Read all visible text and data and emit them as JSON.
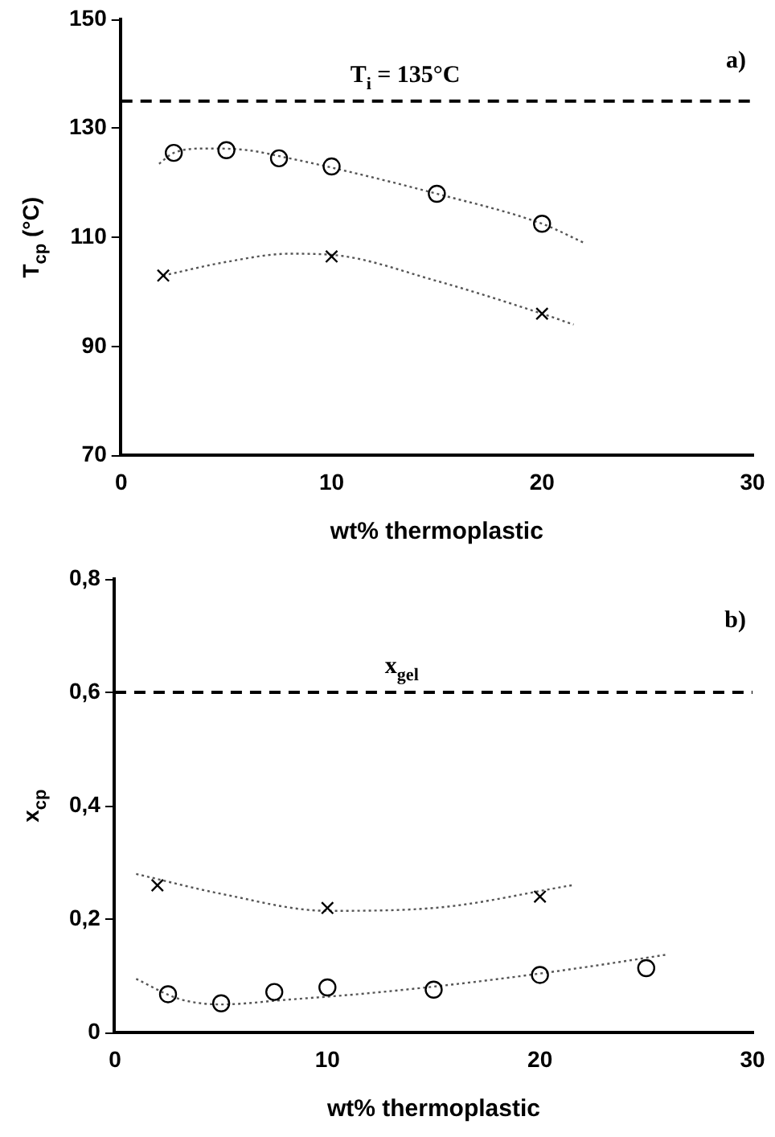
{
  "chart_data": [
    {
      "type": "scatter",
      "xlabel": "wt% thermoplastic",
      "ylabel": "T$_{cp}$ (°C)",
      "annotations": [
        "a)"
      ],
      "xlim": [
        0,
        30
      ],
      "xticks": [
        0,
        10,
        20,
        30
      ],
      "ylim": [
        70,
        150
      ],
      "yticks": [
        70,
        90,
        110,
        130,
        150
      ],
      "grid": false,
      "legend": false,
      "ref_lines": [
        {
          "axis": "y",
          "value": 135,
          "label": "T$_{i}$ = 135°C",
          "color": "#000000",
          "line_style": "dashed"
        }
      ],
      "series": [
        {
          "type": "scatter",
          "marker": "circle",
          "color": "#000000",
          "x": [
            2.5,
            5,
            7.5,
            10,
            15,
            20
          ],
          "values": [
            125.5,
            126,
            124.5,
            123,
            118,
            112.5
          ]
        },
        {
          "type": "scatter",
          "marker": "cross",
          "color": "#000000",
          "x": [
            2,
            10,
            20
          ],
          "values": [
            103,
            106.5,
            96
          ]
        },
        {
          "type": "line",
          "marker": "none",
          "line_style": "dotted",
          "color": "#555555",
          "x": [
            1.8,
            2.5,
            4,
            6,
            8,
            10,
            15,
            20,
            22
          ],
          "values": [
            123.5,
            125.5,
            126.3,
            126,
            124.5,
            122.8,
            118,
            112.5,
            109
          ]
        },
        {
          "type": "line",
          "marker": "none",
          "line_style": "dotted",
          "color": "#555555",
          "x": [
            2,
            5,
            8,
            10,
            15,
            20,
            21.5
          ],
          "values": [
            103,
            105.5,
            107,
            106.8,
            102,
            96,
            94
          ]
        }
      ]
    },
    {
      "type": "scatter",
      "xlabel": "wt% thermoplastic",
      "ylabel": "x$_{cp}$",
      "annotations": [
        "b)"
      ],
      "xlim": [
        0,
        30
      ],
      "xticks": [
        0,
        10,
        20,
        30
      ],
      "ylim": [
        0,
        0.8
      ],
      "yticks": [
        0,
        {
          "value": 0.2,
          "label": "0,2"
        },
        {
          "value": 0.4,
          "label": "0,4"
        },
        {
          "value": 0.6,
          "label": "0,6"
        },
        {
          "value": 0.8,
          "label": "0,8"
        }
      ],
      "grid": false,
      "legend": false,
      "ref_lines": [
        {
          "axis": "y",
          "value": 0.6,
          "label": "x$_{gel}$",
          "color": "#000000",
          "line_style": "dashed"
        }
      ],
      "series": [
        {
          "type": "scatter",
          "marker": "circle",
          "color": "#000000",
          "x": [
            2.5,
            5,
            7.5,
            10,
            15,
            20,
            25
          ],
          "values": [
            0.068,
            0.052,
            0.072,
            0.08,
            0.076,
            0.102,
            0.114
          ]
        },
        {
          "type": "scatter",
          "marker": "cross",
          "color": "#000000",
          "x": [
            2,
            10,
            20
          ],
          "values": [
            0.26,
            0.22,
            0.24
          ]
        },
        {
          "type": "line",
          "marker": "none",
          "line_style": "dotted",
          "color": "#555555",
          "x": [
            1,
            3,
            5,
            8,
            12,
            17,
            22,
            26
          ],
          "values": [
            0.095,
            0.06,
            0.05,
            0.058,
            0.07,
            0.09,
            0.115,
            0.138
          ]
        },
        {
          "type": "line",
          "marker": "none",
          "line_style": "dotted",
          "color": "#555555",
          "x": [
            1,
            5,
            10,
            15,
            21.5
          ],
          "values": [
            0.28,
            0.245,
            0.215,
            0.22,
            0.26
          ]
        }
      ]
    }
  ]
}
